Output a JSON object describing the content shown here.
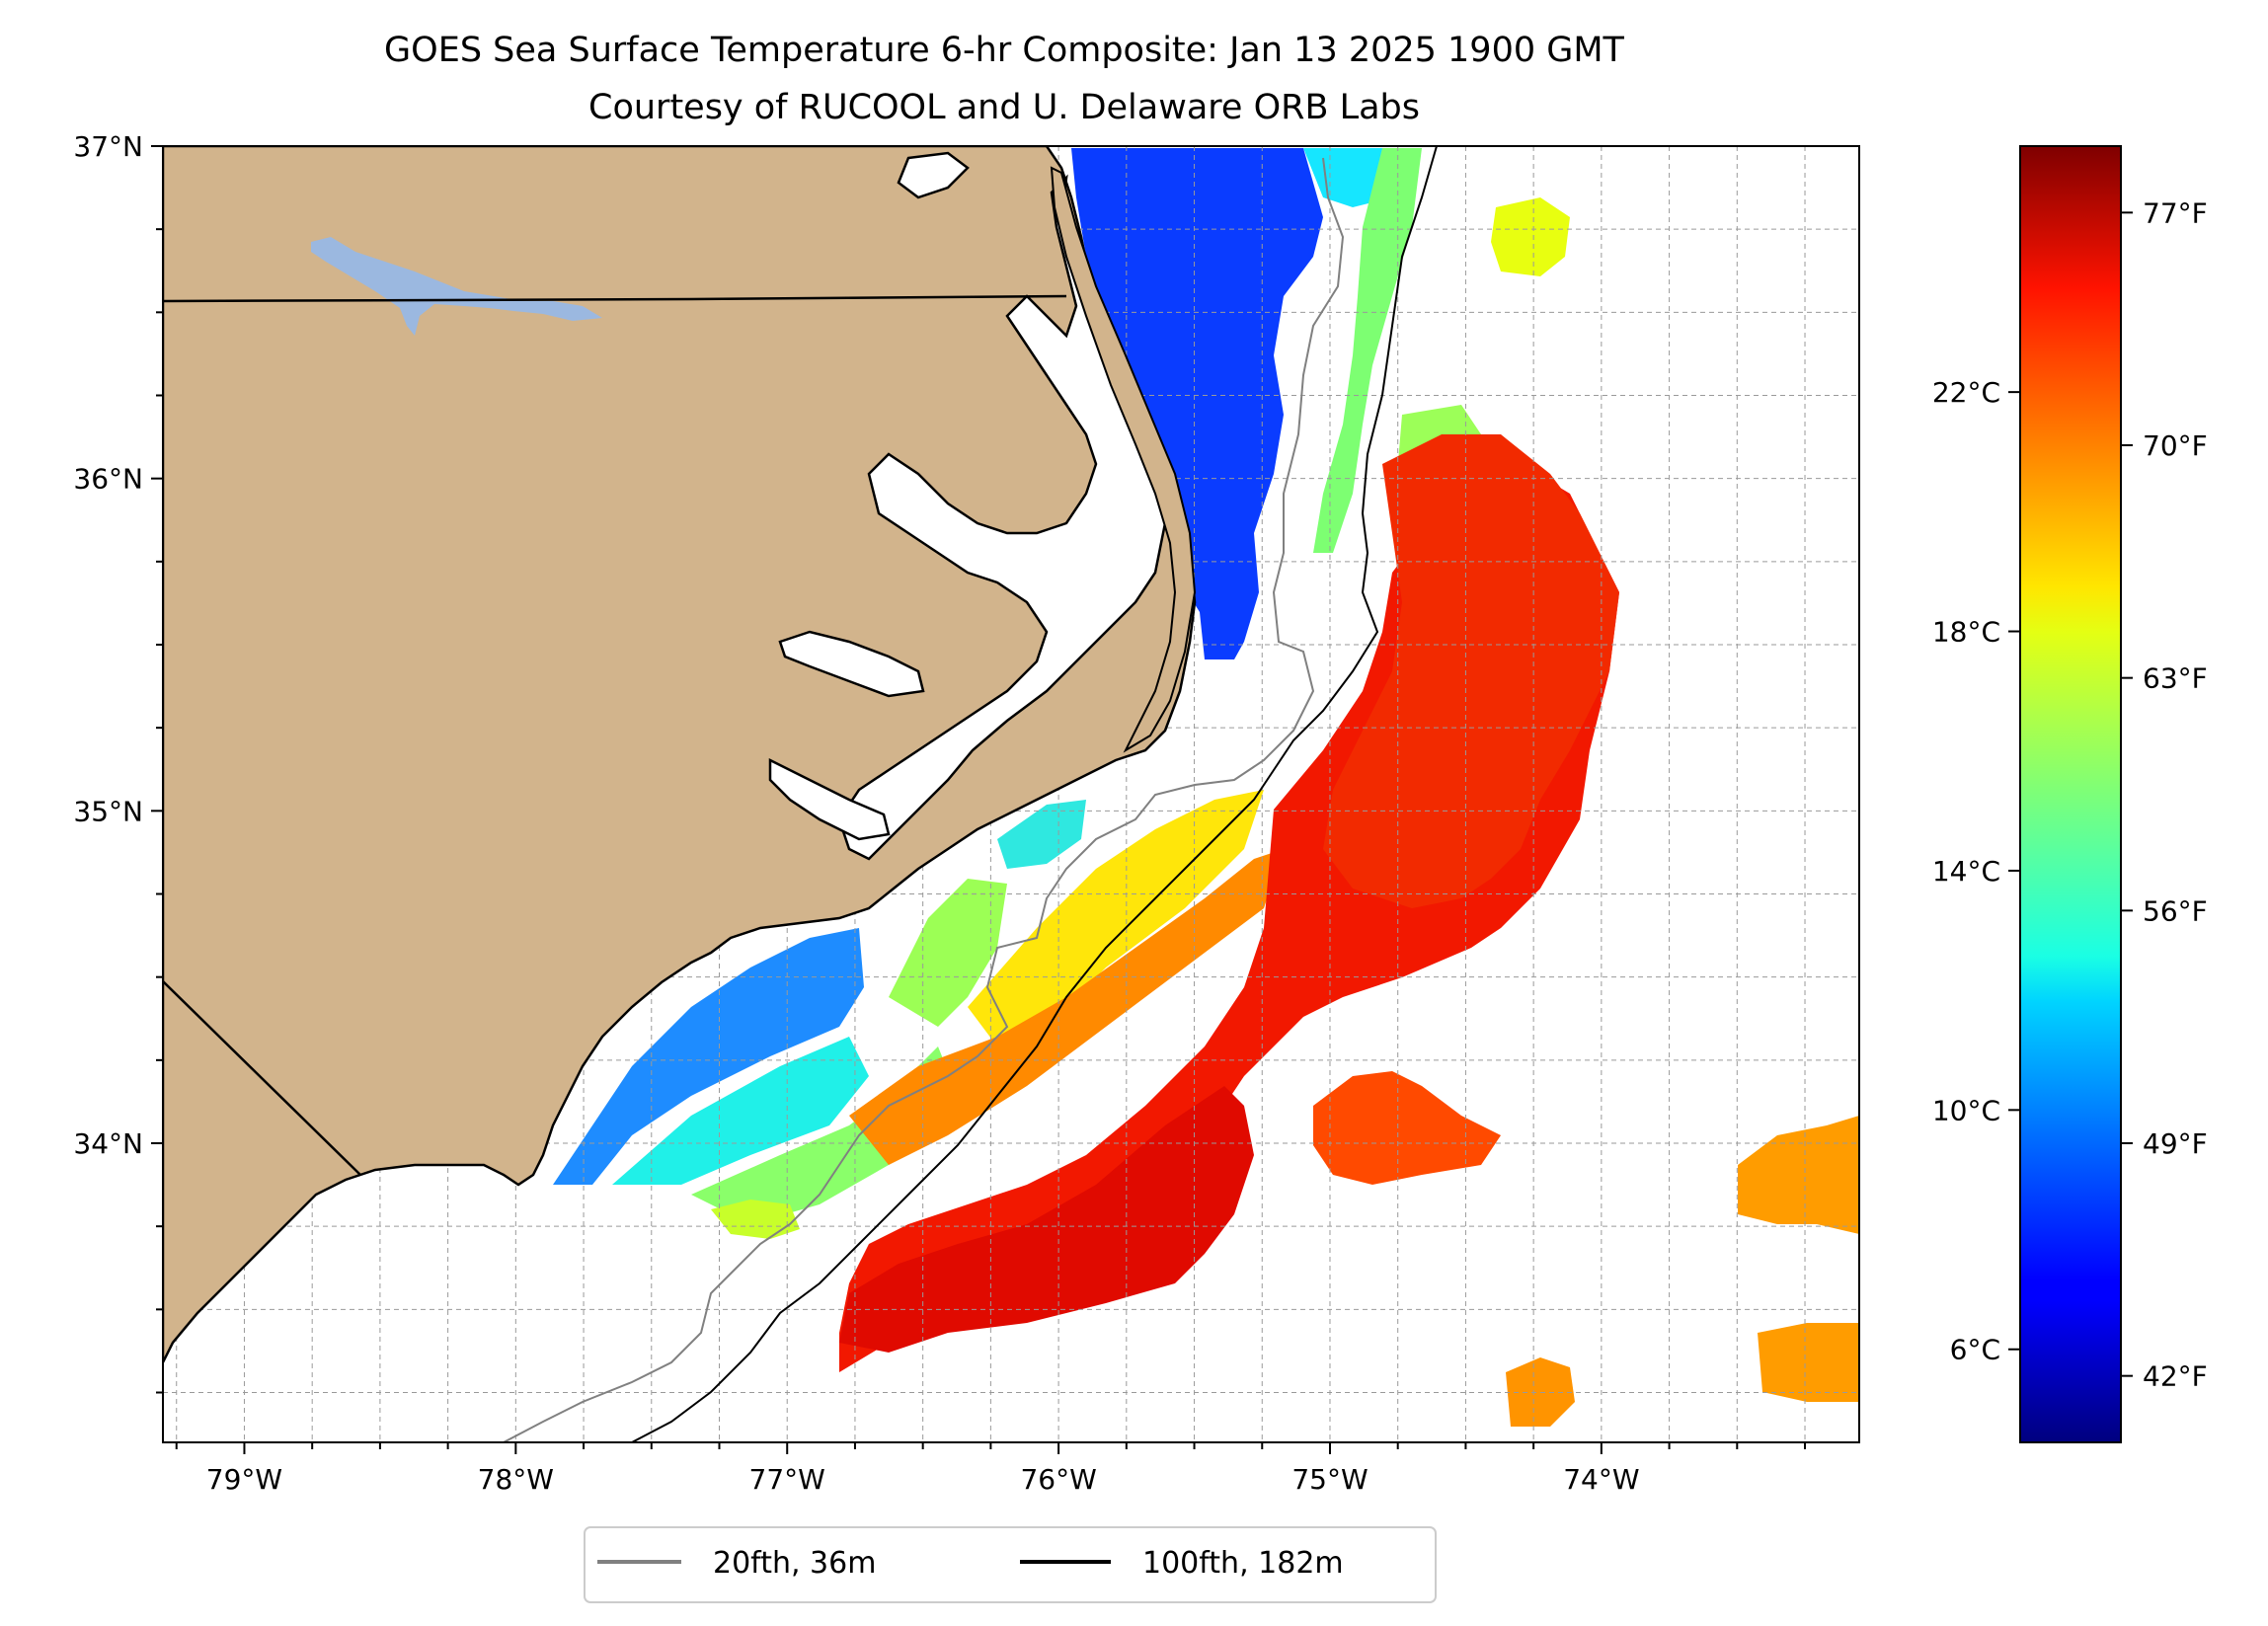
{
  "title": {
    "line1": "GOES Sea Surface Temperature 6-hr Composite: Jan 13 2025 1900 GMT",
    "line2": "Courtesy of RUCOOL and U. Delaware ORB Labs"
  },
  "map": {
    "extent": {
      "lon_min": -79.3,
      "lon_max": -73.05,
      "lat_min": 33.1,
      "lat_max": 37.0
    },
    "lon_ticks": [
      {
        "value": -79,
        "label": "79°W"
      },
      {
        "value": -78,
        "label": "78°W"
      },
      {
        "value": -77,
        "label": "77°W"
      },
      {
        "value": -76,
        "label": "76°W"
      },
      {
        "value": -75,
        "label": "75°W"
      },
      {
        "value": -74,
        "label": "74°W"
      }
    ],
    "lat_ticks": [
      {
        "value": 37,
        "label": "37°N"
      },
      {
        "value": 36,
        "label": "36°N"
      },
      {
        "value": 35,
        "label": "35°N"
      },
      {
        "value": 34,
        "label": "34°N"
      }
    ],
    "gridlines": "dashed, every 0.25°",
    "land_color": "#d2b48c",
    "lake_color": "#9bb8e0",
    "ocean_color": "#ffffff"
  },
  "legend": {
    "items": [
      {
        "label": "20fth, 36m",
        "color": "#808080"
      },
      {
        "label": "100fth, 182m",
        "color": "#000000"
      }
    ]
  },
  "colorbar": {
    "colormap": "jet",
    "range_f": [
      40,
      79
    ],
    "celsius_ticks": [
      {
        "value": 6,
        "label": "6°C"
      },
      {
        "value": 10,
        "label": "10°C"
      },
      {
        "value": 14,
        "label": "14°C"
      },
      {
        "value": 18,
        "label": "18°C"
      },
      {
        "value": 22,
        "label": "22°C"
      }
    ],
    "fahrenheit_ticks": [
      {
        "value": 42,
        "label": "42°F"
      },
      {
        "value": 49,
        "label": "49°F"
      },
      {
        "value": 56,
        "label": "56°F"
      },
      {
        "value": 63,
        "label": "63°F"
      },
      {
        "value": 70,
        "label": "70°F"
      },
      {
        "value": 77,
        "label": "77°F"
      }
    ]
  }
}
